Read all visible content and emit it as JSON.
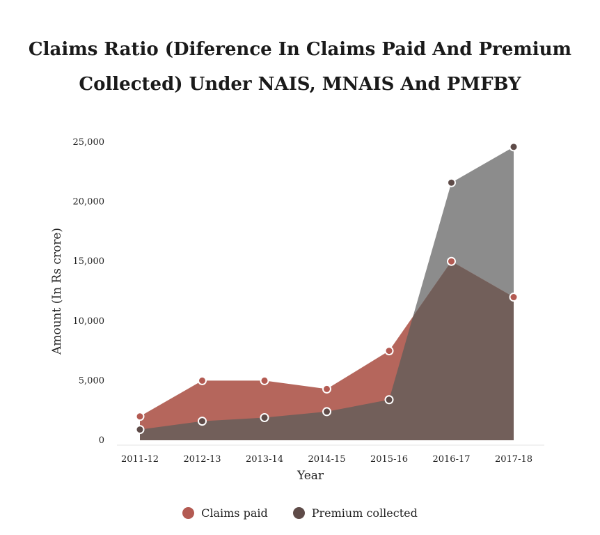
{
  "title_line1": "Claims Ratio (Diference In Claims Paid And Premium",
  "title_line2": "Collected) Under NAIS, MNAIS And PMFBY",
  "chart_data": {
    "type": "area",
    "title": "Claims Ratio (Diference In Claims Paid And Premium Collected) Under NAIS, MNAIS And PMFBY",
    "xlabel": "Year",
    "ylabel": "Amount (In Rs crore)",
    "categories": [
      "2011-12",
      "2012-13",
      "2013-14",
      "2014-15",
      "2015-16",
      "2016-17",
      "2017-18"
    ],
    "ylim": [
      0,
      25000
    ],
    "yticks": [
      0,
      5000,
      10000,
      15000,
      20000,
      25000
    ],
    "ytick_labels": [
      "0",
      "5,000",
      "10,000",
      "15,000",
      "20,000",
      "25,000"
    ],
    "series": [
      {
        "name": "Claims paid",
        "values": [
          2000,
          5000,
          5000,
          4300,
          7500,
          15000,
          12000
        ],
        "color": "#b5665c"
      },
      {
        "name": "Premium collected",
        "values": [
          900,
          1600,
          1900,
          2400,
          3400,
          21600,
          24600
        ],
        "color": "#6e5f5c"
      }
    ],
    "overlap_color": "#725f5a",
    "premium_top_color": "#8c8c8c",
    "grid": false,
    "legend_position": "bottom"
  }
}
